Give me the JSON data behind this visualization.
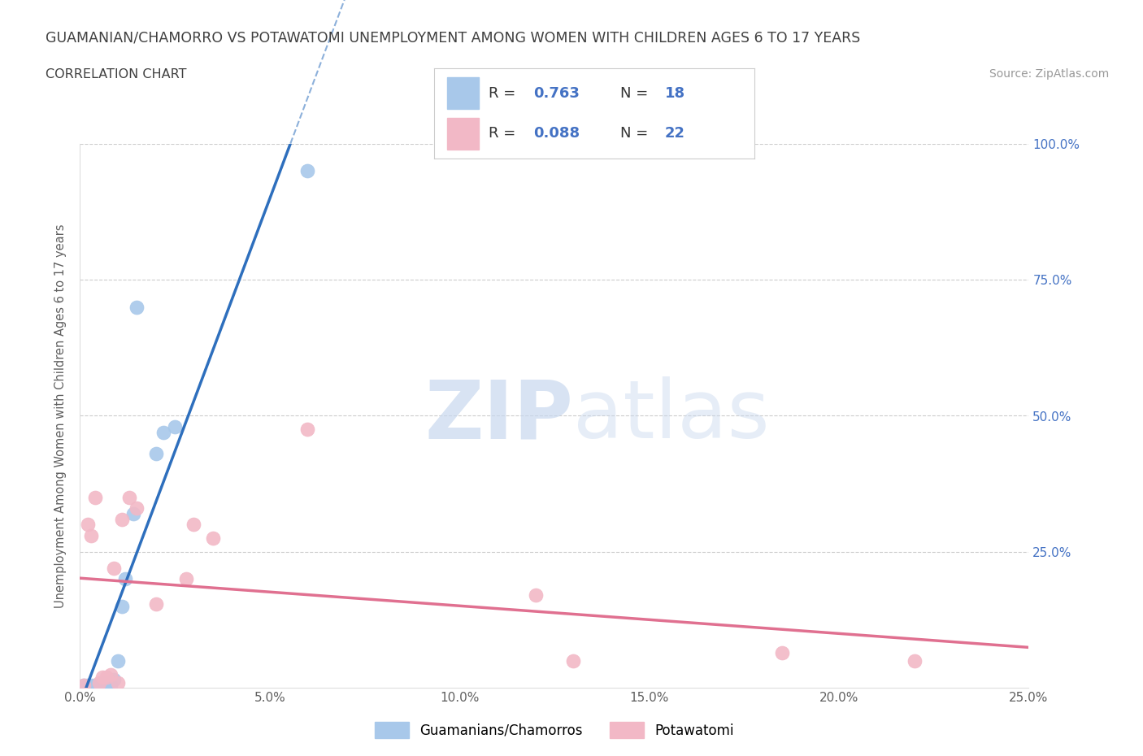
{
  "title": "GUAMANIAN/CHAMORRO VS POTAWATOMI UNEMPLOYMENT AMONG WOMEN WITH CHILDREN AGES 6 TO 17 YEARS",
  "subtitle": "CORRELATION CHART",
  "source": "Source: ZipAtlas.com",
  "ylabel": "Unemployment Among Women with Children Ages 6 to 17 years",
  "xlim": [
    0.0,
    0.25
  ],
  "ylim": [
    0.0,
    1.0
  ],
  "xticks": [
    0.0,
    0.05,
    0.1,
    0.15,
    0.2,
    0.25
  ],
  "yticks": [
    0.0,
    0.25,
    0.5,
    0.75,
    1.0
  ],
  "xtick_labels": [
    "0.0%",
    "5.0%",
    "10.0%",
    "15.0%",
    "20.0%",
    "25.0%"
  ],
  "ytick_labels_right": [
    "",
    "25.0%",
    "50.0%",
    "75.0%",
    "100.0%"
  ],
  "blue_color": "#a8c8ea",
  "pink_color": "#f2b8c6",
  "blue_line_color": "#2e6fbd",
  "pink_line_color": "#e07090",
  "legend_R_blue": "R = 0.763",
  "legend_N_blue": "N = 18",
  "legend_R_pink": "R = 0.088",
  "legend_N_pink": "N = 22",
  "legend_label_blue": "Guamanians/Chamorros",
  "legend_label_pink": "Potawatomi",
  "watermark_zip": "ZIP",
  "watermark_atlas": "atlas",
  "blue_scatter_x": [
    0.001,
    0.002,
    0.003,
    0.004,
    0.005,
    0.006,
    0.007,
    0.008,
    0.009,
    0.01,
    0.011,
    0.012,
    0.014,
    0.015,
    0.02,
    0.022,
    0.025,
    0.06
  ],
  "blue_scatter_y": [
    0.005,
    0.005,
    0.005,
    0.005,
    0.005,
    0.008,
    0.01,
    0.005,
    0.015,
    0.05,
    0.15,
    0.2,
    0.32,
    0.7,
    0.43,
    0.47,
    0.48,
    0.95
  ],
  "pink_scatter_x": [
    0.001,
    0.002,
    0.003,
    0.004,
    0.005,
    0.006,
    0.007,
    0.008,
    0.009,
    0.01,
    0.011,
    0.013,
    0.015,
    0.02,
    0.028,
    0.03,
    0.035,
    0.06,
    0.12,
    0.13,
    0.185,
    0.22
  ],
  "pink_scatter_y": [
    0.005,
    0.3,
    0.28,
    0.35,
    0.01,
    0.02,
    0.02,
    0.025,
    0.22,
    0.01,
    0.31,
    0.35,
    0.33,
    0.155,
    0.2,
    0.3,
    0.275,
    0.475,
    0.17,
    0.05,
    0.065,
    0.05
  ],
  "background_color": "#ffffff",
  "grid_color": "#cccccc",
  "tick_label_color": "#4472c4",
  "title_color": "#404040",
  "axis_label_color": "#606060"
}
